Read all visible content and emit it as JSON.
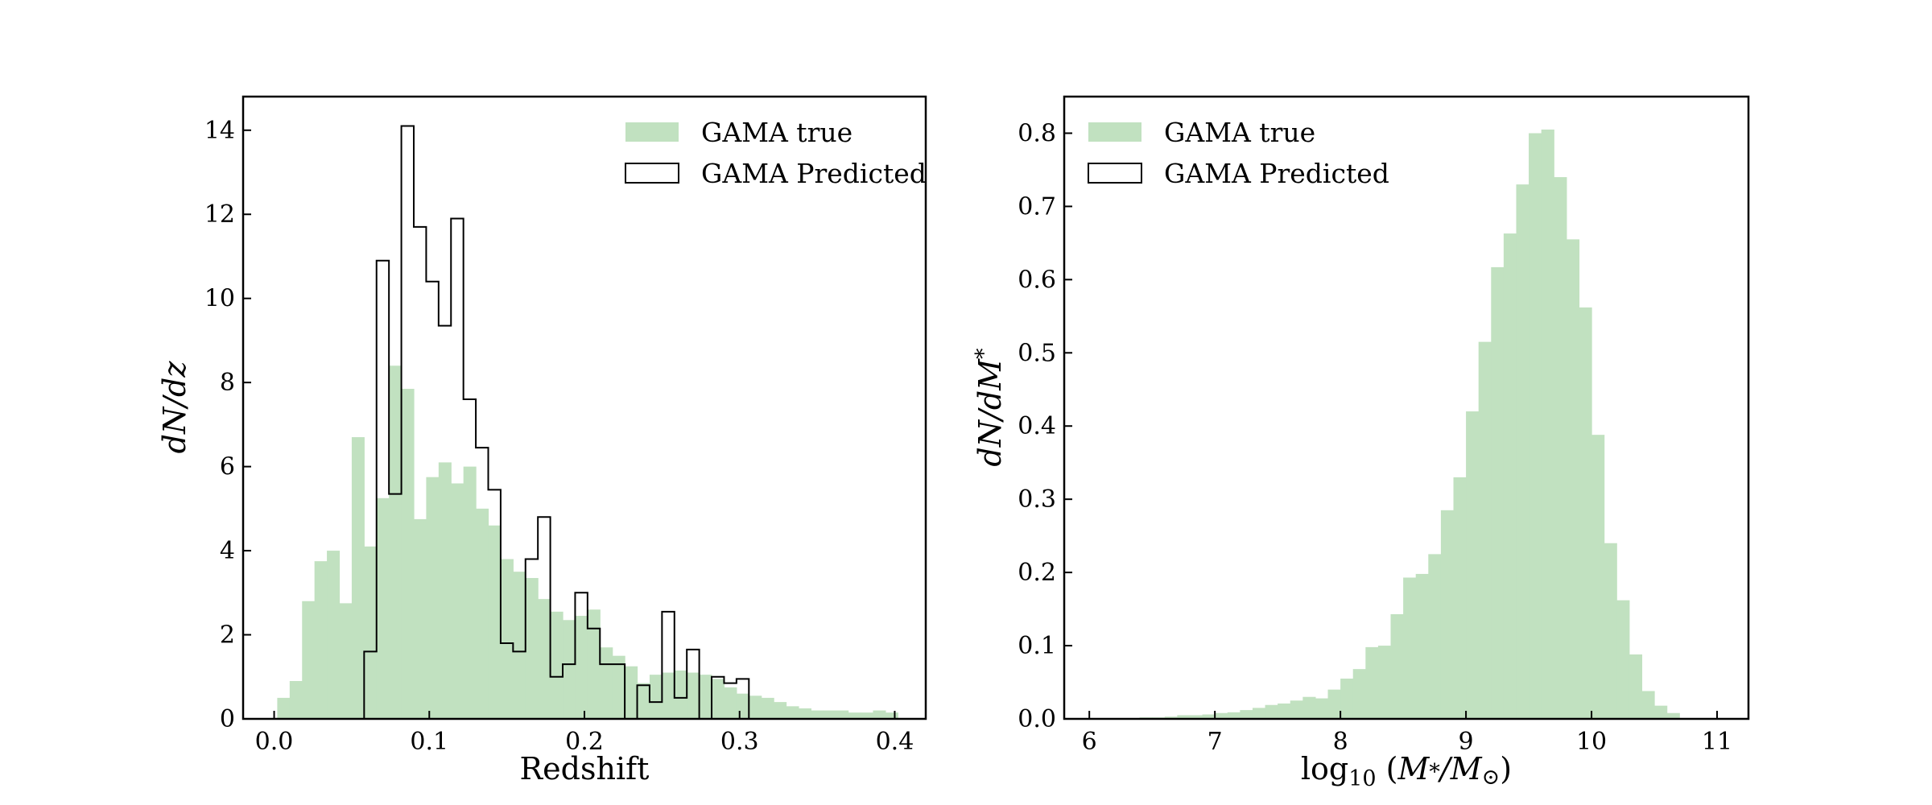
{
  "colors": {
    "true_fill": "#c1e1c0",
    "predicted_edge": "#000000",
    "axes": "#000000"
  },
  "chart_data": [
    {
      "type": "histogram",
      "xlabel": "Redshift",
      "ylabel": "dN/dz",
      "ylabel_parts": {
        "a": "dN/dz"
      },
      "xlim": [
        -0.02,
        0.42
      ],
      "ylim": [
        0,
        14.8
      ],
      "xticks": [
        "0.0",
        "0.1",
        "0.2",
        "0.3",
        "0.4"
      ],
      "xtick_values": [
        0.0,
        0.1,
        0.2,
        0.3,
        0.4
      ],
      "yticks": [
        "0",
        "2",
        "4",
        "6",
        "8",
        "10",
        "12",
        "14"
      ],
      "ytick_values": [
        0,
        2,
        4,
        6,
        8,
        10,
        12,
        14
      ],
      "legend": {
        "placement": "upper right",
        "entries": [
          "GAMA true",
          "GAMA Predicted"
        ]
      },
      "series": [
        {
          "name": "GAMA true",
          "style": "filled",
          "bin_edges": [
            0.002,
            0.01,
            0.018,
            0.026,
            0.034,
            0.042,
            0.05,
            0.058,
            0.066,
            0.074,
            0.082,
            0.09,
            0.098,
            0.106,
            0.114,
            0.122,
            0.13,
            0.138,
            0.146,
            0.154,
            0.162,
            0.17,
            0.178,
            0.186,
            0.194,
            0.202,
            0.21,
            0.218,
            0.226,
            0.234,
            0.242,
            0.25,
            0.258,
            0.266,
            0.274,
            0.282,
            0.29,
            0.298,
            0.306,
            0.314,
            0.322,
            0.33,
            0.338,
            0.346,
            0.354,
            0.362,
            0.37,
            0.378,
            0.386,
            0.394,
            0.402
          ],
          "values": [
            0.5,
            0.9,
            2.8,
            3.75,
            4.0,
            2.75,
            6.7,
            4.1,
            5.25,
            8.4,
            7.85,
            4.75,
            5.75,
            6.1,
            5.6,
            6.0,
            5.0,
            4.6,
            3.8,
            3.5,
            3.35,
            2.85,
            2.55,
            2.35,
            2.45,
            2.6,
            1.7,
            1.5,
            1.25,
            0.85,
            1.05,
            1.1,
            1.15,
            1.1,
            1.05,
            0.95,
            0.75,
            0.6,
            0.55,
            0.5,
            0.4,
            0.3,
            0.25,
            0.2,
            0.2,
            0.2,
            0.15,
            0.15,
            0.2,
            0.15
          ]
        },
        {
          "name": "GAMA Predicted",
          "style": "step",
          "bin_edges": [
            0.058,
            0.066,
            0.074,
            0.082,
            0.09,
            0.098,
            0.106,
            0.114,
            0.122,
            0.13,
            0.138,
            0.146,
            0.154,
            0.162,
            0.17,
            0.178,
            0.186,
            0.194,
            0.202,
            0.21,
            0.218,
            0.226,
            0.234,
            0.242,
            0.25,
            0.258,
            0.266,
            0.274,
            0.282,
            0.29,
            0.298,
            0.306
          ],
          "values": [
            1.6,
            10.9,
            5.35,
            14.1,
            11.7,
            10.4,
            9.35,
            11.9,
            7.6,
            6.45,
            5.45,
            1.8,
            1.6,
            3.8,
            4.8,
            1.0,
            1.3,
            3.0,
            2.15,
            1.3,
            1.3,
            0.0,
            0.8,
            0.4,
            2.55,
            0.5,
            1.65,
            0.0,
            1.0,
            0.85,
            0.95
          ]
        }
      ]
    },
    {
      "type": "histogram",
      "xlabel": "log10 (M*/M⊙)",
      "xlabel_parts": {
        "a": "log",
        "b": "10",
        "c": " (",
        "d": "M",
        "e": "*",
        "f": "/",
        "g": "M",
        "h": "⊙",
        "i": ")"
      },
      "ylabel": "dN/dM*",
      "ylabel_parts": {
        "a": "dN/dM",
        "b": "*"
      },
      "xlim": [
        5.8,
        11.25
      ],
      "ylim": [
        0,
        0.85
      ],
      "xticks": [
        "6",
        "7",
        "8",
        "9",
        "10",
        "11"
      ],
      "xtick_values": [
        6,
        7,
        8,
        9,
        10,
        11
      ],
      "yticks": [
        "0.0",
        "0.1",
        "0.2",
        "0.3",
        "0.4",
        "0.5",
        "0.6",
        "0.7",
        "0.8"
      ],
      "ytick_values": [
        0.0,
        0.1,
        0.2,
        0.3,
        0.4,
        0.5,
        0.6,
        0.7,
        0.8
      ],
      "legend": {
        "placement": "upper left",
        "entries": [
          "GAMA true",
          "GAMA Predicted"
        ]
      },
      "series": [
        {
          "name": "GAMA true",
          "style": "filled",
          "bin_edges": [
            6.0,
            6.1,
            6.2,
            6.3,
            6.4,
            6.5,
            6.6,
            6.7,
            6.8,
            6.9,
            7.0,
            7.1,
            7.2,
            7.3,
            7.4,
            7.5,
            7.6,
            7.7,
            7.8,
            7.9,
            8.0,
            8.1,
            8.2,
            8.3,
            8.4,
            8.5,
            8.6,
            8.7,
            8.8,
            8.9,
            9.0,
            9.1,
            9.2,
            9.3,
            9.4,
            9.5,
            9.6,
            9.7,
            9.8,
            9.9,
            10.0,
            10.1,
            10.2,
            10.3,
            10.4,
            10.5,
            10.6,
            10.7
          ],
          "values": [
            0.001,
            0.001,
            0.001,
            0.001,
            0.002,
            0.002,
            0.003,
            0.005,
            0.005,
            0.006,
            0.008,
            0.009,
            0.012,
            0.015,
            0.019,
            0.021,
            0.025,
            0.03,
            0.028,
            0.04,
            0.055,
            0.068,
            0.098,
            0.1,
            0.143,
            0.193,
            0.198,
            0.225,
            0.285,
            0.33,
            0.42,
            0.515,
            0.617,
            0.663,
            0.73,
            0.8,
            0.805,
            0.74,
            0.655,
            0.562,
            0.388,
            0.24,
            0.162,
            0.088,
            0.038,
            0.018,
            0.008
          ]
        },
        {
          "name": "GAMA Predicted",
          "style": "step",
          "bin_edges": [],
          "values": []
        }
      ]
    }
  ]
}
